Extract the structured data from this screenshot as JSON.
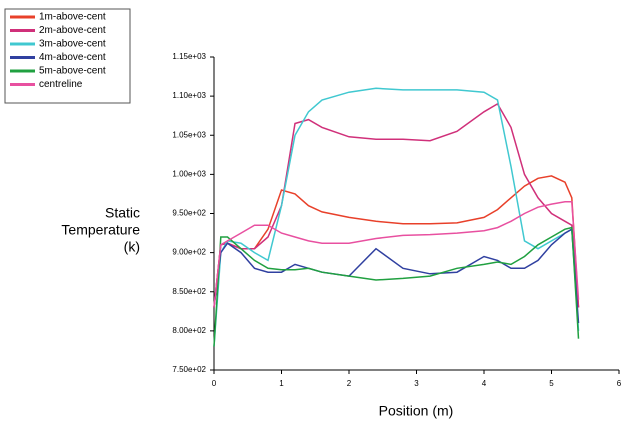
{
  "chart_data": {
    "type": "line",
    "x_label": "Position (m)",
    "y_label": [
      "Static",
      "Temperature",
      "(k)"
    ],
    "x": [
      0,
      0.1,
      0.2,
      0.4,
      0.6,
      0.8,
      1.0,
      1.2,
      1.4,
      1.6,
      2.0,
      2.4,
      2.8,
      3.2,
      3.6,
      4.0,
      4.2,
      4.4,
      4.6,
      4.8,
      5.0,
      5.2,
      5.3,
      5.4
    ],
    "series": [
      {
        "name": "1m-above-cent",
        "color": "#e8402a",
        "values": [
          830,
          910,
          912,
          905,
          905,
          930,
          980,
          975,
          960,
          952,
          945,
          940,
          937,
          937,
          938,
          945,
          955,
          970,
          985,
          995,
          998,
          990,
          970,
          830
        ]
      },
      {
        "name": "2m-above-cent",
        "color": "#d0307a",
        "values": [
          830,
          910,
          912,
          905,
          905,
          920,
          960,
          1065,
          1070,
          1060,
          1048,
          1045,
          1045,
          1043,
          1055,
          1080,
          1090,
          1060,
          1000,
          970,
          950,
          940,
          935,
          830
        ]
      },
      {
        "name": "3m-above-cent",
        "color": "#40c8d0",
        "values": [
          780,
          900,
          915,
          912,
          900,
          890,
          960,
          1050,
          1080,
          1095,
          1105,
          1110,
          1108,
          1108,
          1108,
          1105,
          1095,
          1010,
          915,
          905,
          915,
          925,
          930,
          800
        ]
      },
      {
        "name": "4m-above-cent",
        "color": "#3040a0",
        "values": [
          830,
          900,
          912,
          900,
          880,
          875,
          875,
          885,
          880,
          875,
          870,
          905,
          880,
          873,
          875,
          895,
          890,
          880,
          880,
          890,
          910,
          925,
          930,
          810
        ]
      },
      {
        "name": "5m-above-cent",
        "color": "#20a040",
        "values": [
          780,
          920,
          920,
          905,
          890,
          880,
          878,
          878,
          880,
          875,
          870,
          865,
          867,
          870,
          880,
          885,
          888,
          885,
          895,
          910,
          920,
          930,
          932,
          790
        ]
      },
      {
        "name": "centreline",
        "color": "#e850a0",
        "values": [
          830,
          910,
          915,
          925,
          935,
          935,
          925,
          920,
          915,
          912,
          912,
          918,
          922,
          923,
          925,
          928,
          932,
          940,
          950,
          958,
          962,
          965,
          965,
          840
        ]
      }
    ],
    "xlim": [
      0,
      6
    ],
    "xticks": [
      0,
      1,
      2,
      3,
      4,
      5,
      6
    ],
    "ylim": [
      750,
      1150
    ],
    "yticks": [
      {
        "value": 750,
        "label": "7.50e+02"
      },
      {
        "value": 800,
        "label": "8.00e+02"
      },
      {
        "value": 850,
        "label": "8.50e+02"
      },
      {
        "value": 900,
        "label": "9.00e+02"
      },
      {
        "value": 950,
        "label": "9.50e+02"
      },
      {
        "value": 1000,
        "label": "1.00e+03"
      },
      {
        "value": 1050,
        "label": "1.05e+03"
      },
      {
        "value": 1100,
        "label": "1.10e+03"
      },
      {
        "value": 1150,
        "label": "1.15e+03"
      }
    ],
    "grid": false
  }
}
